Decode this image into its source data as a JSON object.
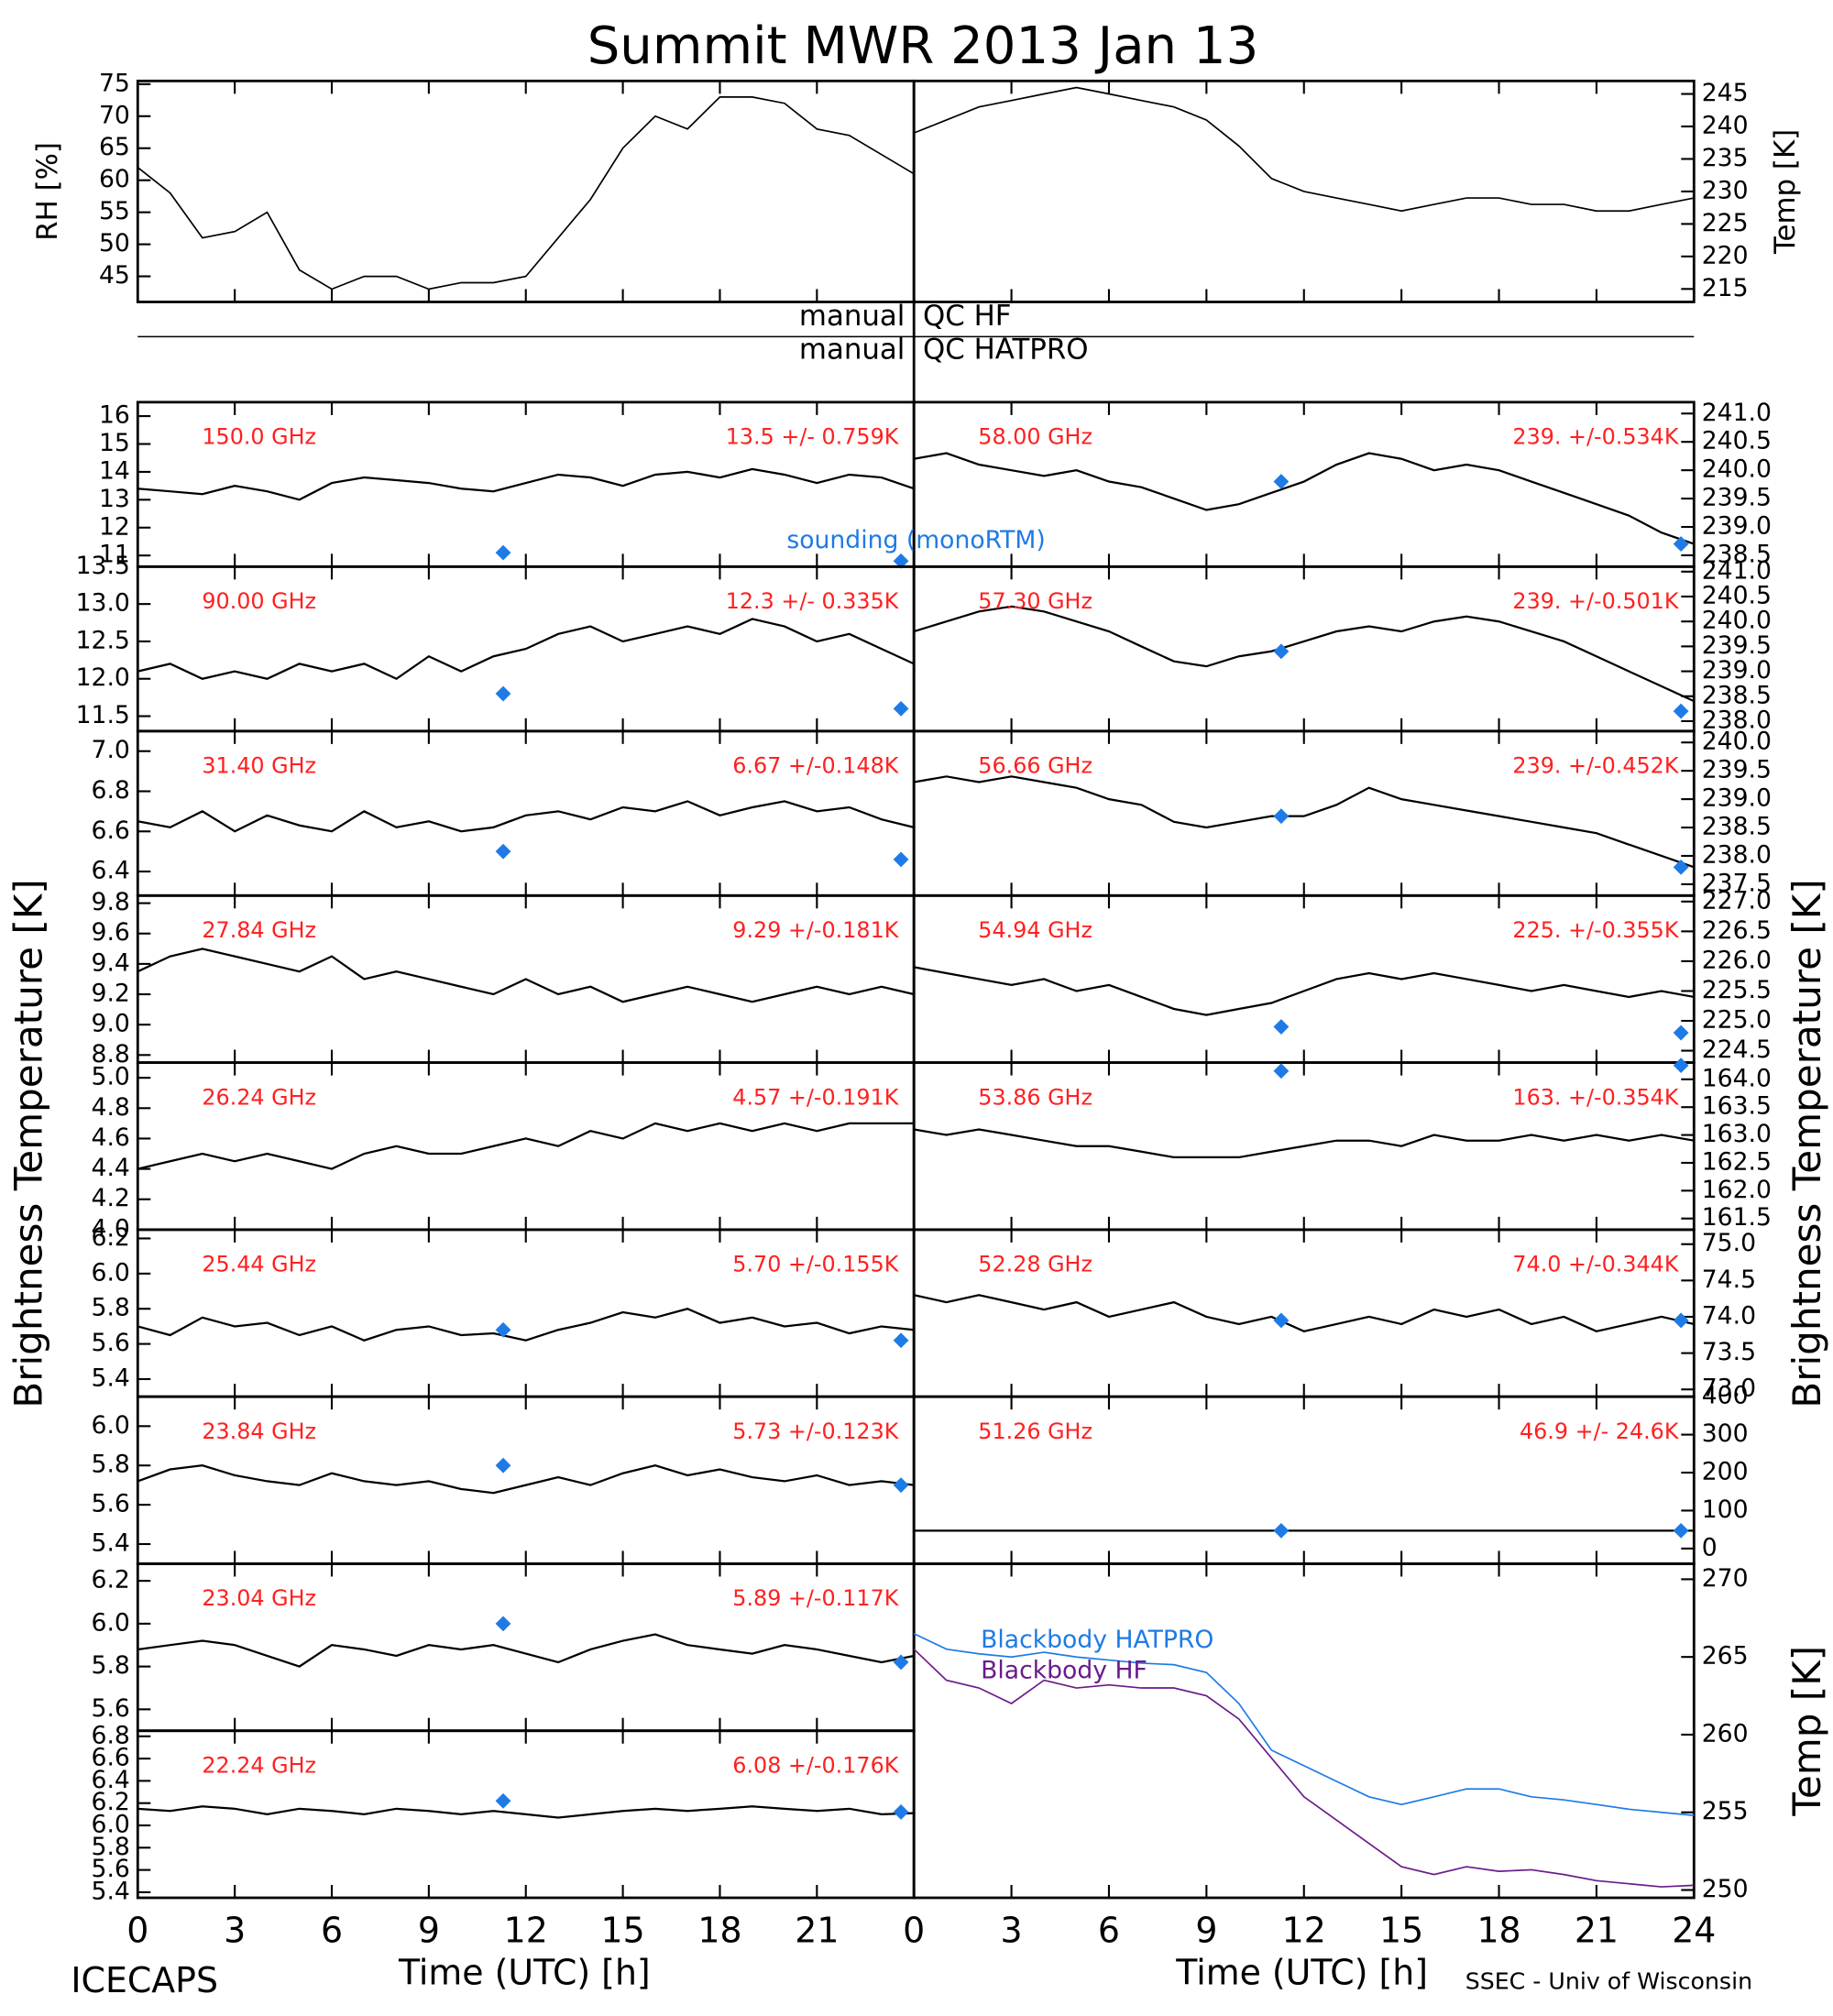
{
  "title": "Summit MWR 2013 Jan 13",
  "footer_left": "ICECAPS",
  "footer_right": "SSEC - Univ of Wisconsin",
  "tb_ylabel": "Brightness Temperature [K]",
  "qc": [
    [
      "manual",
      "QC HF"
    ],
    [
      "manual",
      "QC HATPRO"
    ]
  ],
  "x_axis": {
    "label": "Time (UTC) [h]",
    "xlim": [
      0,
      24
    ],
    "xticks": [
      0,
      3,
      6,
      9,
      12,
      15,
      18,
      21,
      24
    ],
    "x": [
      0,
      1,
      2,
      3,
      4,
      5,
      6,
      7,
      8,
      9,
      10,
      11,
      12,
      13,
      14,
      15,
      16,
      17,
      18,
      19,
      20,
      21,
      22,
      23,
      24
    ]
  },
  "sounding": {
    "name": "sounding (monoRTM)",
    "color": "#1e7be6",
    "x": [
      11.3,
      23.6
    ]
  },
  "charts": [
    {
      "type": "line",
      "ylabel": "RH [%]",
      "ylim": [
        41,
        75.5
      ],
      "yticks": [
        45,
        50,
        55,
        60,
        65,
        70,
        75
      ],
      "series": [
        {
          "color": "#000000",
          "values": [
            62,
            58,
            51,
            52,
            55,
            46,
            43,
            45,
            45,
            43,
            44,
            44,
            45,
            51,
            57,
            65,
            70,
            68,
            73,
            73,
            72,
            68,
            67,
            64,
            61
          ]
        }
      ]
    },
    {
      "type": "line",
      "ylabel": "Temp [K]",
      "ylim": [
        213,
        247
      ],
      "yticks": [
        215,
        220,
        225,
        230,
        235,
        240,
        245
      ],
      "series": [
        {
          "color": "#000000",
          "values": [
            239,
            241,
            243,
            244,
            245,
            246,
            245,
            244,
            243,
            241,
            237,
            232,
            230,
            229,
            228,
            227,
            228,
            229,
            229,
            228,
            228,
            227,
            227,
            228,
            229
          ]
        }
      ]
    },
    {
      "type": "line",
      "label": "150.0 GHz",
      "stats": "13.5 +/- 0.759K",
      "ylim": [
        10.6,
        16.5
      ],
      "yticks": [
        11,
        12,
        13,
        14,
        15,
        16
      ],
      "series": [
        {
          "color": "#000000",
          "values": [
            13.4,
            13.3,
            13.2,
            13.5,
            13.3,
            13.0,
            13.6,
            13.8,
            13.7,
            13.6,
            13.4,
            13.3,
            13.6,
            13.9,
            13.8,
            13.5,
            13.9,
            14.0,
            13.8,
            14.1,
            13.9,
            13.6,
            13.9,
            13.8,
            13.4
          ]
        }
      ],
      "sounding_values": [
        11.1,
        10.8
      ]
    },
    {
      "type": "line",
      "label": "90.00 GHz",
      "stats": "12.3 +/- 0.335K",
      "ylim": [
        11.3,
        13.5
      ],
      "yticks": [
        11.5,
        {
          "value": 12,
          "label": "12.0"
        },
        12.5,
        {
          "value": 13,
          "label": "13.0"
        },
        13.5
      ],
      "series": [
        {
          "color": "#000000",
          "values": [
            12.1,
            12.2,
            12.0,
            12.1,
            12.0,
            12.2,
            12.1,
            12.2,
            12.0,
            12.3,
            12.1,
            12.3,
            12.4,
            12.6,
            12.7,
            12.5,
            12.6,
            12.7,
            12.6,
            12.8,
            12.7,
            12.5,
            12.6,
            12.4,
            12.2
          ]
        }
      ],
      "sounding_values": [
        11.8,
        11.6
      ]
    },
    {
      "type": "line",
      "label": "31.40 GHz",
      "stats": "6.67 +/-0.148K",
      "ylim": [
        6.28,
        7.1
      ],
      "yticks": [
        6.4,
        6.6,
        6.8,
        {
          "value": 7,
          "label": "7.0"
        }
      ],
      "series": [
        {
          "color": "#000000",
          "values": [
            6.65,
            6.62,
            6.7,
            6.6,
            6.68,
            6.63,
            6.6,
            6.7,
            6.62,
            6.65,
            6.6,
            6.62,
            6.68,
            6.7,
            6.66,
            6.72,
            6.7,
            6.75,
            6.68,
            6.72,
            6.75,
            6.7,
            6.72,
            6.66,
            6.62
          ]
        }
      ],
      "sounding_values": [
        6.5,
        6.46
      ]
    },
    {
      "type": "line",
      "label": "27.84 GHz",
      "stats": "9.29 +/-0.181K",
      "ylim": [
        8.75,
        9.85
      ],
      "yticks": [
        8.8,
        {
          "value": 9,
          "label": "9.0"
        },
        9.2,
        9.4,
        9.6,
        9.8
      ],
      "series": [
        {
          "color": "#000000",
          "values": [
            9.35,
            9.45,
            9.5,
            9.45,
            9.4,
            9.35,
            9.45,
            9.3,
            9.35,
            9.3,
            9.25,
            9.2,
            9.3,
            9.2,
            9.25,
            9.15,
            9.2,
            9.25,
            9.2,
            9.15,
            9.2,
            9.25,
            9.2,
            9.25,
            9.2
          ]
        }
      ]
    },
    {
      "type": "line",
      "label": "26.24 GHz",
      "stats": "4.57 +/-0.191K",
      "ylim": [
        4.0,
        5.1
      ],
      "yticks": [
        {
          "value": 4,
          "label": "4.0"
        },
        4.2,
        4.4,
        4.6,
        4.8,
        {
          "value": 5,
          "label": "5.0"
        }
      ],
      "series": [
        {
          "color": "#000000",
          "values": [
            4.4,
            4.45,
            4.5,
            4.45,
            4.5,
            4.45,
            4.4,
            4.5,
            4.55,
            4.5,
            4.5,
            4.55,
            4.6,
            4.55,
            4.65,
            4.6,
            4.7,
            4.65,
            4.7,
            4.65,
            4.7,
            4.65,
            4.7,
            4.7,
            4.7
          ]
        }
      ]
    },
    {
      "type": "line",
      "label": "25.44 GHz",
      "stats": "5.70 +/-0.155K",
      "ylim": [
        5.3,
        6.25
      ],
      "yticks": [
        5.4,
        5.6,
        5.8,
        {
          "value": 6,
          "label": "6.0"
        },
        6.2
      ],
      "series": [
        {
          "color": "#000000",
          "values": [
            5.7,
            5.65,
            5.75,
            5.7,
            5.72,
            5.65,
            5.7,
            5.62,
            5.68,
            5.7,
            5.65,
            5.66,
            5.62,
            5.68,
            5.72,
            5.78,
            5.75,
            5.8,
            5.72,
            5.75,
            5.7,
            5.72,
            5.66,
            5.7,
            5.68
          ]
        }
      ],
      "sounding_values": [
        5.68,
        5.62
      ]
    },
    {
      "type": "line",
      "label": "23.84 GHz",
      "stats": "5.73 +/-0.123K",
      "ylim": [
        5.3,
        6.15
      ],
      "yticks": [
        5.4,
        5.6,
        5.8,
        {
          "value": 6,
          "label": "6.0"
        }
      ],
      "series": [
        {
          "color": "#000000",
          "values": [
            5.72,
            5.78,
            5.8,
            5.75,
            5.72,
            5.7,
            5.76,
            5.72,
            5.7,
            5.72,
            5.68,
            5.66,
            5.7,
            5.74,
            5.7,
            5.76,
            5.8,
            5.75,
            5.78,
            5.74,
            5.72,
            5.75,
            5.7,
            5.72,
            5.7
          ]
        }
      ],
      "sounding_values": [
        5.8,
        5.7
      ]
    },
    {
      "type": "line",
      "label": "23.04 GHz",
      "stats": "5.89 +/-0.117K",
      "ylim": [
        5.5,
        6.28
      ],
      "yticks": [
        5.6,
        5.8,
        {
          "value": 6,
          "label": "6.0"
        },
        6.2
      ],
      "series": [
        {
          "color": "#000000",
          "values": [
            5.88,
            5.9,
            5.92,
            5.9,
            5.85,
            5.8,
            5.9,
            5.88,
            5.85,
            5.9,
            5.88,
            5.9,
            5.86,
            5.82,
            5.88,
            5.92,
            5.95,
            5.9,
            5.88,
            5.86,
            5.9,
            5.88,
            5.85,
            5.82,
            5.85
          ]
        }
      ],
      "sounding_values": [
        6.0,
        5.82
      ]
    },
    {
      "type": "line",
      "label": "22.24 GHz",
      "stats": "6.08 +/-0.176K",
      "ylim": [
        5.35,
        6.85
      ],
      "yticks": [
        5.4,
        5.6,
        5.8,
        {
          "value": 6,
          "label": "6.0"
        },
        6.2,
        6.4,
        6.6,
        6.8
      ],
      "series": [
        {
          "color": "#000000",
          "values": [
            6.15,
            6.13,
            6.17,
            6.15,
            6.1,
            6.15,
            6.13,
            6.1,
            6.15,
            6.13,
            6.1,
            6.13,
            6.1,
            6.07,
            6.1,
            6.13,
            6.15,
            6.13,
            6.15,
            6.17,
            6.15,
            6.13,
            6.15,
            6.1,
            6.11
          ]
        }
      ],
      "sounding_values": [
        6.22,
        6.12
      ]
    },
    {
      "type": "line",
      "label": "58.00 GHz",
      "stats": "239. +/-0.534K",
      "ylim": [
        238.3,
        241.2
      ],
      "yticks": [
        238.5,
        {
          "value": 239,
          "label": "239.0"
        },
        239.5,
        {
          "value": 240,
          "label": "240.0"
        },
        240.5,
        {
          "value": 241,
          "label": "241.0"
        }
      ],
      "series": [
        {
          "color": "#000000",
          "values": [
            240.2,
            240.3,
            240.1,
            240.0,
            239.9,
            240.0,
            239.8,
            239.7,
            239.5,
            239.3,
            239.4,
            239.6,
            239.8,
            240.1,
            240.3,
            240.2,
            240.0,
            240.1,
            240.0,
            239.8,
            239.6,
            239.4,
            239.2,
            238.9,
            238.7
          ]
        }
      ],
      "sounding_values": [
        239.8,
        238.7
      ]
    },
    {
      "type": "line",
      "label": "57.30 GHz",
      "stats": "239. +/-0.501K",
      "ylim": [
        237.8,
        241.1
      ],
      "yticks": [
        {
          "value": 238,
          "label": "238.0"
        },
        238.5,
        {
          "value": 239,
          "label": "239.0"
        },
        239.5,
        {
          "value": 240,
          "label": "240.0"
        },
        240.5,
        {
          "value": 241,
          "label": "241.0"
        }
      ],
      "series": [
        {
          "color": "#000000",
          "values": [
            239.8,
            240.0,
            240.2,
            240.3,
            240.2,
            240.0,
            239.8,
            239.5,
            239.2,
            239.1,
            239.3,
            239.4,
            239.6,
            239.8,
            239.9,
            239.8,
            240.0,
            240.1,
            240.0,
            239.8,
            239.6,
            239.3,
            239.0,
            238.7,
            238.4
          ]
        }
      ],
      "sounding_values": [
        239.4,
        238.2
      ]
    },
    {
      "type": "line",
      "label": "56.66 GHz",
      "stats": "239. +/-0.452K",
      "ylim": [
        237.3,
        240.2
      ],
      "yticks": [
        237.5,
        {
          "value": 238,
          "label": "238.0"
        },
        238.5,
        {
          "value": 239,
          "label": "239.0"
        },
        239.5,
        {
          "value": 240,
          "label": "240.0"
        }
      ],
      "series": [
        {
          "color": "#000000",
          "values": [
            239.3,
            239.4,
            239.3,
            239.4,
            239.3,
            239.2,
            239.0,
            238.9,
            238.6,
            238.5,
            238.6,
            238.7,
            238.7,
            238.9,
            239.2,
            239.0,
            238.9,
            238.8,
            238.7,
            238.6,
            238.5,
            238.4,
            238.2,
            238.0,
            237.8
          ]
        }
      ],
      "sounding_values": [
        238.7,
        237.8
      ]
    },
    {
      "type": "line",
      "label": "54.94 GHz",
      "stats": "225. +/-0.355K",
      "ylim": [
        224.3,
        227.1
      ],
      "yticks": [
        224.5,
        {
          "value": 225,
          "label": "225.0"
        },
        225.5,
        {
          "value": 226,
          "label": "226.0"
        },
        226.5,
        {
          "value": 227,
          "label": "227.0"
        }
      ],
      "series": [
        {
          "color": "#000000",
          "values": [
            225.9,
            225.8,
            225.7,
            225.6,
            225.7,
            225.5,
            225.6,
            225.4,
            225.2,
            225.1,
            225.2,
            225.3,
            225.5,
            225.7,
            225.8,
            225.7,
            225.8,
            225.7,
            225.6,
            225.5,
            225.6,
            225.5,
            225.4,
            225.5,
            225.4
          ]
        }
      ],
      "sounding_values": [
        224.9,
        224.8
      ]
    },
    {
      "type": "line",
      "label": "53.86 GHz",
      "stats": "163. +/-0.354K",
      "ylim": [
        161.3,
        164.3
      ],
      "yticks": [
        161.5,
        {
          "value": 162,
          "label": "162.0"
        },
        162.5,
        {
          "value": 163,
          "label": "163.0"
        },
        163.5,
        {
          "value": 164,
          "label": "164.0"
        }
      ],
      "series": [
        {
          "color": "#000000",
          "values": [
            163.1,
            163.0,
            163.1,
            163.0,
            162.9,
            162.8,
            162.8,
            162.7,
            162.6,
            162.6,
            162.6,
            162.7,
            162.8,
            162.9,
            162.9,
            162.8,
            163.0,
            162.9,
            162.9,
            163.0,
            162.9,
            163.0,
            162.9,
            163.0,
            162.9
          ]
        }
      ],
      "sounding_values": [
        164.15,
        164.25
      ]
    },
    {
      "type": "line",
      "label": "52.28 GHz",
      "stats": "74.0 +/-0.344K",
      "ylim": [
        72.9,
        75.2
      ],
      "yticks": [
        {
          "value": 73,
          "label": "73.0"
        },
        73.5,
        {
          "value": 74,
          "label": "74.0"
        },
        74.5,
        {
          "value": 75,
          "label": "75.0"
        }
      ],
      "series": [
        {
          "color": "#000000",
          "values": [
            74.3,
            74.2,
            74.3,
            74.2,
            74.1,
            74.2,
            74.0,
            74.1,
            74.2,
            74.0,
            73.9,
            74.0,
            73.8,
            73.9,
            74.0,
            73.9,
            74.1,
            74.0,
            74.1,
            73.9,
            74.0,
            73.8,
            73.9,
            74.0,
            73.9
          ]
        }
      ],
      "sounding_values": [
        73.95,
        73.95
      ]
    },
    {
      "type": "line",
      "label": "51.26 GHz",
      "stats": "46.9 +/- 24.6K",
      "ylim": [
        -40,
        400
      ],
      "yticks": [
        0,
        100,
        200,
        300,
        400
      ],
      "series": [
        {
          "color": "#000000",
          "values": [
            47,
            47,
            47,
            47,
            47,
            47,
            47,
            47,
            47,
            47,
            47,
            47,
            47,
            47,
            47,
            47,
            47,
            47,
            47,
            47,
            47,
            47,
            47,
            47,
            47
          ]
        }
      ],
      "sounding_values": [
        47,
        47
      ]
    },
    {
      "type": "line",
      "ylabel": "Temp [K]",
      "ylim": [
        249.5,
        271
      ],
      "yticks": [
        250,
        255,
        260,
        265,
        270
      ],
      "series": [
        {
          "name": "Blackbody HATPRO",
          "color": "#1e7be6",
          "values": [
            266.5,
            265.5,
            265.2,
            265,
            265.3,
            265,
            264.8,
            264.6,
            264.5,
            264,
            262,
            259,
            258,
            257,
            256,
            255.5,
            256,
            256.5,
            256.5,
            256,
            255.8,
            255.5,
            255.2,
            255,
            254.8
          ]
        },
        {
          "name": "Blackbody HF",
          "color": "#6a1b8a",
          "values": [
            265.5,
            263.5,
            263,
            262,
            263.5,
            263,
            263.2,
            263,
            263,
            262.5,
            261,
            258.5,
            256,
            254.5,
            253,
            251.5,
            251,
            251.5,
            251.2,
            251.3,
            251,
            250.6,
            250.4,
            250.2,
            250.3
          ]
        }
      ]
    }
  ]
}
